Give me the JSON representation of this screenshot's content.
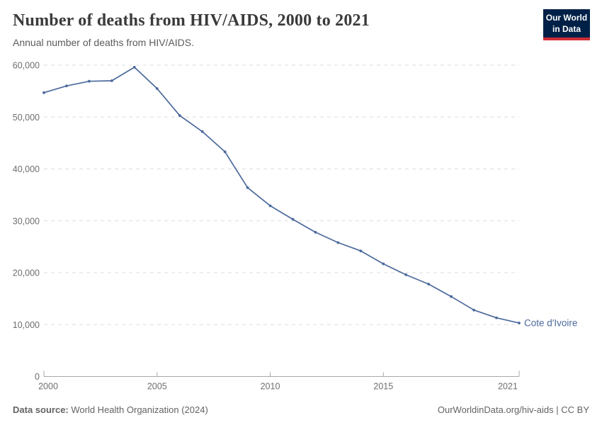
{
  "header": {
    "title": "Number of deaths from HIV/AIDS, 2000 to 2021",
    "subtitle": "Annual number of deaths from HIV/AIDS.",
    "logo_line1": "Our World",
    "logo_line2": "in Data"
  },
  "footer": {
    "source_label": "Data source:",
    "source_value": " World Health Organization (2024)",
    "attribution": "OurWorldinData.org/hiv-aids | CC BY"
  },
  "colors": {
    "line": "#4c6a9c",
    "series_label": "#4c6a9c",
    "grid": "#dddddd",
    "axis": "#a8a8a8",
    "tick_label": "#6e6e6e",
    "logo_bg": "#002147",
    "logo_red": "#cf2d35"
  },
  "chart_data": {
    "type": "line",
    "title": "Number of deaths from HIV/AIDS, 2000 to 2021",
    "subtitle": "Annual number of deaths from HIV/AIDS.",
    "xlabel": "",
    "ylabel": "",
    "xlim": [
      2000,
      2021
    ],
    "ylim": [
      0,
      60000
    ],
    "xticks": [
      2000,
      2005,
      2010,
      2015,
      2021
    ],
    "yticks": [
      0,
      10000,
      20000,
      30000,
      40000,
      50000,
      60000
    ],
    "grid": "horizontal-dashed",
    "legend_position": "end-of-line",
    "x": [
      2000,
      2001,
      2002,
      2003,
      2004,
      2005,
      2006,
      2007,
      2008,
      2009,
      2010,
      2011,
      2012,
      2013,
      2014,
      2015,
      2016,
      2017,
      2018,
      2019,
      2020,
      2021
    ],
    "series": [
      {
        "name": "Cote d'Ivoire",
        "values": [
          54700,
          56000,
          56900,
          57000,
          59600,
          55500,
          50300,
          47200,
          43300,
          36400,
          32900,
          30300,
          27800,
          25800,
          24200,
          21700,
          19600,
          17800,
          15400,
          12800,
          11300,
          10300
        ]
      }
    ]
  }
}
